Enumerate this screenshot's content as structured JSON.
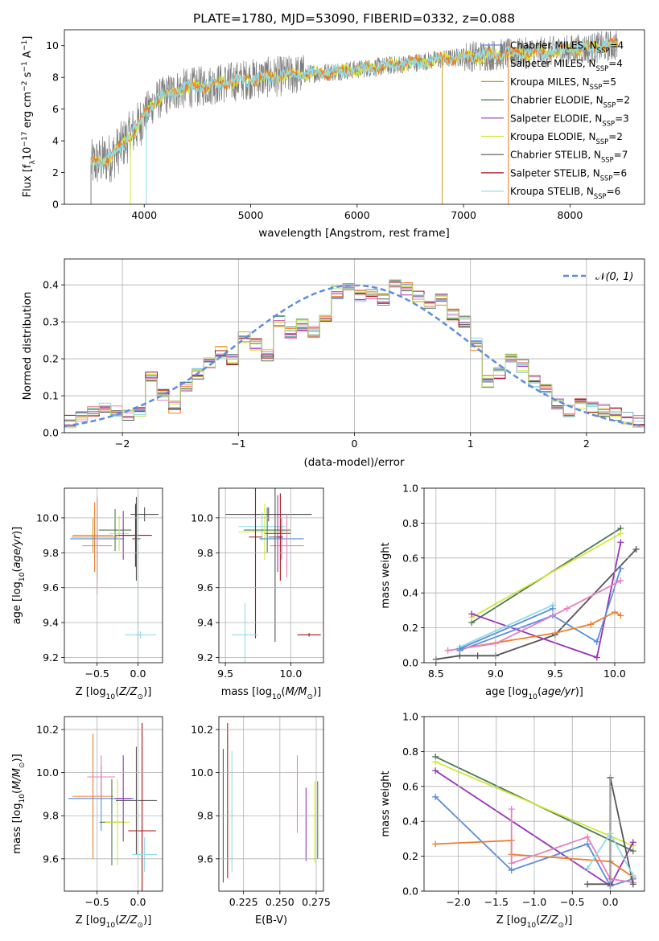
{
  "colors": {
    "Chabrier MILES": "#5b8cde",
    "Salpeter MILES": "#f07d2c",
    "Kroupa MILES": "#c79a1e",
    "Chabrier ELODIE": "#4a7a52",
    "Salpeter ELODIE": "#9933bb",
    "Kroupa ELODIE": "#d4e838",
    "Chabrier STELIB": "#555555",
    "Salpeter STELIB": "#aa1111",
    "Kroupa STELIB": "#8fdde6",
    "pink": "#e87fb8",
    "lime": "#b8dc6a",
    "data": "#7f7f7f",
    "gauss": "#5b8cde"
  },
  "chart_data": [
    {
      "type": "line",
      "id": "spectrum",
      "title": "PLATE=1780, MJD=53090, FIBERID=0332, z=0.088",
      "xlabel": "wavelength [Angstrom, rest frame]",
      "ylabel": "Flux [fλ10⁻¹⁷ erg cm⁻² s⁻¹ A⁻¹]",
      "xlim": [
        3250,
        8700
      ],
      "ylim": [
        0,
        11
      ],
      "xticks": [
        4000,
        5000,
        6000,
        7000,
        8000
      ],
      "yticks": [
        0,
        2,
        4,
        6,
        8,
        10
      ],
      "grid": false,
      "legend_position": "top-right",
      "legend": [
        {
          "label": "Chabrier MILES",
          "n": "4"
        },
        {
          "label": "Salpeter MILES",
          "n": "4"
        },
        {
          "label": "Kroupa MILES",
          "n": "5"
        },
        {
          "label": "Chabrier ELODIE",
          "n": "2"
        },
        {
          "label": "Salpeter ELODIE",
          "n": "3"
        },
        {
          "label": "Kroupa ELODIE",
          "n": "2"
        },
        {
          "label": "Chabrier STELIB",
          "n": "7"
        },
        {
          "label": "Salpeter STELIB",
          "n": "6"
        },
        {
          "label": "Kroupa STELIB",
          "n": "6"
        }
      ],
      "continuum": {
        "x": [
          3500,
          3700,
          3850,
          3950,
          4000,
          4100,
          4300,
          4600,
          5000,
          5500,
          6000,
          6500,
          7000,
          7500,
          8000,
          8400
        ],
        "y": [
          2.5,
          3.0,
          4.2,
          5.0,
          5.6,
          6.5,
          7.2,
          7.5,
          7.9,
          8.2,
          8.5,
          8.9,
          9.3,
          9.5,
          9.7,
          10.0
        ]
      }
    },
    {
      "type": "step",
      "id": "residuals",
      "xlabel": "(data-model)/error",
      "ylabel": "Normed distribution",
      "xlim": [
        -2.5,
        2.5
      ],
      "ylim": [
        0,
        0.47
      ],
      "xticks": [
        -2,
        -1,
        0,
        1,
        2
      ],
      "yticks": [
        0.0,
        0.1,
        0.2,
        0.3,
        0.4
      ],
      "grid": true,
      "legend_position": "top-right",
      "gauss_label": "N(0, 1)",
      "bin_width": 0.1,
      "bin_start": -2.5,
      "hist": [
        0.03,
        0.04,
        0.06,
        0.07,
        0.06,
        0.05,
        0.06,
        0.15,
        0.1,
        0.07,
        0.12,
        0.16,
        0.19,
        0.22,
        0.2,
        0.26,
        0.24,
        0.21,
        0.3,
        0.27,
        0.29,
        0.27,
        0.31,
        0.38,
        0.4,
        0.37,
        0.38,
        0.36,
        0.4,
        0.39,
        0.37,
        0.34,
        0.36,
        0.32,
        0.3,
        0.24,
        0.14,
        0.16,
        0.2,
        0.18,
        0.14,
        0.12,
        0.08,
        0.06,
        0.08,
        0.07,
        0.06,
        0.05,
        0.04,
        0.03
      ]
    },
    {
      "type": "errorbar",
      "id": "age-vs-Z",
      "xlabel": "Z [log10(Z/Z⊙)]",
      "ylabel": "age  [log10(age/yr)]",
      "xlim": [
        -0.9,
        0.3
      ],
      "ylim": [
        9.17,
        10.17
      ],
      "xticks": [
        -0.5,
        0.0
      ],
      "yticks": [
        9.2,
        9.4,
        9.6,
        9.8,
        10.0
      ],
      "grid": true,
      "points": [
        {
          "c": "Salpeter MILES",
          "x": -0.53,
          "y": 9.89,
          "xe": 0.28,
          "ye": 0.2
        },
        {
          "c": "Kroupa MILES",
          "x": -0.55,
          "y": 9.9,
          "xe": 0.25,
          "ye": 0.1
        },
        {
          "c": "Chabrier MILES",
          "x": -0.5,
          "y": 9.88,
          "xe": 0.33,
          "ye": 0.22
        },
        {
          "c": "pink",
          "x": -0.5,
          "y": 9.84,
          "xe": 0.18,
          "ye": 0.28
        },
        {
          "c": "Chabrier ELODIE",
          "x": -0.28,
          "y": 9.93,
          "xe": 0.2,
          "ye": 0.12
        },
        {
          "c": "Kroupa ELODIE",
          "x": -0.23,
          "y": 9.91,
          "xe": 0.12,
          "ye": 0.1
        },
        {
          "c": "Salpeter ELODIE",
          "x": -0.18,
          "y": 9.9,
          "xe": 0.1,
          "ye": 0.14
        },
        {
          "c": "Salpeter STELIB",
          "x": -0.03,
          "y": 9.9,
          "xe": 0.2,
          "ye": 0.18
        },
        {
          "c": "Chabrier STELIB",
          "x": -0.02,
          "y": 9.88,
          "xe": 0.05,
          "ye": 0.24
        },
        {
          "c": "Chabrier STELIB",
          "x": 0.08,
          "y": 10.02,
          "xe": 0.17,
          "ye": 0.04
        },
        {
          "c": "Kroupa STELIB",
          "x": 0.03,
          "y": 9.33,
          "xe": 0.19,
          "ye": 0.02
        },
        {
          "c": "Kroupa STELIB",
          "x": 0.0,
          "y": 9.33,
          "xe": 0.03,
          "ye": 0.8
        }
      ]
    },
    {
      "type": "errorbar",
      "id": "age-vs-mass",
      "xlabel": "mass [log10(M/M⊙)]",
      "ylabel": "",
      "xlim": [
        9.45,
        10.25
      ],
      "ylim": [
        9.17,
        10.17
      ],
      "xticks": [
        9.5,
        10.0
      ],
      "yticks": [
        9.2,
        9.4,
        9.6,
        9.8,
        10.0
      ],
      "grid": true,
      "points": [
        {
          "c": "Chabrier STELIB",
          "x": 9.83,
          "y": 10.02,
          "xe": 0.33,
          "ye": 0.04
        },
        {
          "c": "Kroupa STELIB",
          "x": 9.78,
          "y": 9.95,
          "xe": 0.18,
          "ye": 0.08
        },
        {
          "c": "Chabrier ELODIE",
          "x": 9.82,
          "y": 9.93,
          "xe": 0.18,
          "ye": 0.13
        },
        {
          "c": "Salpeter ELODIE",
          "x": 9.9,
          "y": 9.91,
          "xe": 0.1,
          "ye": 0.22
        },
        {
          "c": "Kroupa ELODIE",
          "x": 9.8,
          "y": 9.92,
          "xe": 0.2,
          "ye": 0.16
        },
        {
          "c": "Chabrier MILES",
          "x": 9.93,
          "y": 9.88,
          "xe": 0.17,
          "ye": 0.12
        },
        {
          "c": "pink",
          "x": 9.97,
          "y": 9.84,
          "xe": 0.13,
          "ye": 0.18
        },
        {
          "c": "Salpeter STELIB",
          "x": 9.73,
          "y": 9.89,
          "xe": 0.05,
          "ye": 0.58
        },
        {
          "c": "Chabrier STELIB",
          "x": 9.88,
          "y": 9.89,
          "xe": 0.05,
          "ye": 0.6
        },
        {
          "c": "Kroupa STELIB",
          "x": 9.65,
          "y": 9.33,
          "xe": 0.1,
          "ye": 0.18
        },
        {
          "c": "Salpeter STELIB",
          "x": 10.14,
          "y": 9.33,
          "xe": 0.09,
          "ye": 0.01
        },
        {
          "c": "Salpeter STELIB",
          "x": 9.92,
          "y": 9.89,
          "xe": 0.02,
          "ye": 0.25
        }
      ]
    },
    {
      "type": "line",
      "id": "weight-vs-age",
      "xlabel": "age  [log10(age/yr)]",
      "ylabel": "mass weight",
      "xlim": [
        8.4,
        10.25
      ],
      "ylim": [
        0,
        1
      ],
      "xticks": [
        8.5,
        9.0,
        9.5,
        10.0
      ],
      "yticks": [
        0.0,
        0.2,
        0.4,
        0.6,
        0.8,
        1.0
      ],
      "grid": true,
      "series": [
        {
          "c": "Chabrier ELODIE",
          "x": [
            8.8,
            10.05
          ],
          "y": [
            0.23,
            0.77
          ]
        },
        {
          "c": "Kroupa ELODIE",
          "x": [
            8.8,
            10.05
          ],
          "y": [
            0.26,
            0.74
          ]
        },
        {
          "c": "Chabrier STELIB",
          "x": [
            8.5,
            8.7,
            8.85,
            9.0,
            9.5,
            10.18
          ],
          "y": [
            0.02,
            0.04,
            0.04,
            0.04,
            0.16,
            0.65
          ]
        },
        {
          "c": "Salpeter ELODIE",
          "x": [
            8.8,
            9.85,
            10.05
          ],
          "y": [
            0.28,
            0.03,
            0.69
          ]
        },
        {
          "c": "Chabrier MILES",
          "x": [
            8.7,
            9.48,
            9.85,
            10.05
          ],
          "y": [
            0.07,
            0.27,
            0.12,
            0.54
          ]
        },
        {
          "c": "Salpeter MILES",
          "x": [
            8.7,
            9.5,
            9.8,
            10.0,
            10.05
          ],
          "y": [
            0.08,
            0.17,
            0.22,
            0.29,
            0.27
          ]
        },
        {
          "c": "pink",
          "x": [
            8.6,
            9.0,
            9.6,
            10.05
          ],
          "y": [
            0.07,
            0.11,
            0.31,
            0.47
          ]
        },
        {
          "c": "Kroupa STELIB",
          "x": [
            8.7,
            9.48
          ],
          "y": [
            0.09,
            0.33
          ]
        },
        {
          "c": "Chabrier MILES",
          "x": [
            8.7,
            9.48
          ],
          "y": [
            0.08,
            0.31
          ]
        }
      ]
    },
    {
      "type": "errorbar",
      "id": "mass-vs-Z",
      "xlabel": "Z [log10(Z/Z⊙)]",
      "ylabel": "mass [log10(M/M⊙)]",
      "xlim": [
        -0.9,
        0.3
      ],
      "ylim": [
        9.45,
        10.26
      ],
      "xticks": [
        -0.5,
        0.0
      ],
      "yticks": [
        9.6,
        9.8,
        10.0,
        10.2
      ],
      "grid": true,
      "points": [
        {
          "c": "Salpeter MILES",
          "x": -0.55,
          "y": 9.89,
          "xe": 0.25,
          "ye": 0.29
        },
        {
          "c": "Chabrier MILES",
          "x": -0.45,
          "y": 9.88,
          "xe": 0.4,
          "ye": 0.15
        },
        {
          "c": "pink",
          "x": -0.45,
          "y": 9.98,
          "xe": 0.17,
          "ye": 0.1
        },
        {
          "c": "Chabrier ELODIE",
          "x": -0.32,
          "y": 9.77,
          "xe": 0.15,
          "ye": 0.2
        },
        {
          "c": "Kroupa ELODIE",
          "x": -0.25,
          "y": 9.77,
          "xe": 0.15,
          "ye": 0.2
        },
        {
          "c": "Salpeter ELODIE",
          "x": -0.18,
          "y": 9.88,
          "xe": 0.1,
          "ye": 0.2
        },
        {
          "c": "Chabrier STELIB",
          "x": -0.02,
          "y": 9.87,
          "xe": 0.25,
          "ye": 0.25
        },
        {
          "c": "Salpeter STELIB",
          "x": 0.05,
          "y": 9.73,
          "xe": 0.17,
          "ye": 0.5
        },
        {
          "c": "Kroupa STELIB",
          "x": 0.08,
          "y": 9.62,
          "xe": 0.15,
          "ye": 0.08
        }
      ]
    },
    {
      "type": "errorbar",
      "id": "mass-vs-EBV",
      "xlabel": "E(B-V)",
      "ylabel": "",
      "xlim": [
        0.208,
        0.28
      ],
      "ylim": [
        9.45,
        10.26
      ],
      "xticks": [
        0.225,
        0.25,
        0.275
      ],
      "xticklabels": [
        "0.225",
        "0.250",
        "0.275"
      ],
      "yticks": [
        9.6,
        9.8,
        10.0,
        10.2
      ],
      "grid": true,
      "points": [
        {
          "c": "Chabrier STELIB",
          "x": 0.211,
          "y": 9.8,
          "ye": 0.31
        },
        {
          "c": "Salpeter STELIB",
          "x": 0.214,
          "y": 9.87,
          "ye": 0.36
        },
        {
          "c": "Kroupa STELIB",
          "x": 0.217,
          "y": 9.82,
          "ye": 0.28
        },
        {
          "c": "pink",
          "x": 0.262,
          "y": 9.9,
          "ye": 0.18
        },
        {
          "c": "Salpeter ELODIE",
          "x": 0.268,
          "y": 9.76,
          "ye": 0.17
        },
        {
          "c": "Kroupa ELODIE",
          "x": 0.274,
          "y": 9.77,
          "ye": 0.19
        },
        {
          "c": "Chabrier ELODIE",
          "x": 0.276,
          "y": 9.78,
          "ye": 0.18
        }
      ]
    },
    {
      "type": "line",
      "id": "weight-vs-Z",
      "xlabel": "Z [log10(Z/Z⊙)]",
      "ylabel": "mass weight",
      "xlim": [
        -2.45,
        0.45
      ],
      "ylim": [
        0,
        1
      ],
      "xticks": [
        -2.0,
        -1.5,
        -1.0,
        -0.5,
        0.0
      ],
      "yticks": [
        0.0,
        0.2,
        0.4,
        0.6,
        0.8,
        1.0
      ],
      "grid": true,
      "series": [
        {
          "c": "Chabrier ELODIE",
          "x": [
            -2.3,
            0.3
          ],
          "y": [
            0.77,
            0.23
          ]
        },
        {
          "c": "Kroupa ELODIE",
          "x": [
            -2.3,
            0.3
          ],
          "y": [
            0.74,
            0.26
          ]
        },
        {
          "c": "Salpeter ELODIE",
          "x": [
            -2.3,
            0.0,
            0.3
          ],
          "y": [
            0.69,
            0.03,
            0.28
          ]
        },
        {
          "c": "Chabrier MILES",
          "x": [
            -2.3,
            -1.3,
            -0.3,
            0.0,
            0.3
          ],
          "y": [
            0.54,
            0.12,
            0.27,
            0.03,
            0.07
          ]
        },
        {
          "c": "Salpeter MILES",
          "x": [
            -2.3,
            -1.3,
            -1.3,
            0.0,
            0.3
          ],
          "y": [
            0.27,
            0.29,
            0.21,
            0.17,
            0.08
          ]
        },
        {
          "c": "pink",
          "x": [
            -1.3,
            -1.3,
            -0.3,
            0.0,
            0.3
          ],
          "y": [
            0.47,
            0.16,
            0.31,
            0.07,
            0.05
          ]
        },
        {
          "c": "Chabrier STELIB",
          "x": [
            -0.3,
            0.0,
            0.0,
            0.3
          ],
          "y": [
            0.04,
            0.04,
            0.65,
            0.04
          ]
        },
        {
          "c": "Kroupa STELIB",
          "x": [
            -0.3,
            0.0,
            0.3
          ],
          "y": [
            0.13,
            0.33,
            0.09
          ]
        }
      ]
    }
  ]
}
